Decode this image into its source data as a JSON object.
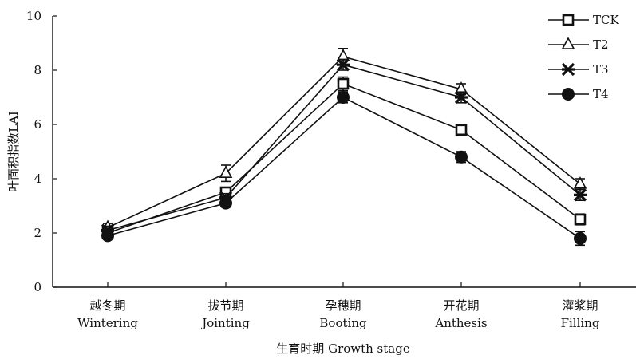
{
  "chart_data": {
    "type": "line",
    "title": "",
    "xlabel": "生育时期 Growth stage",
    "ylabel": "叶面积指数LAI",
    "ylim": [
      0,
      10
    ],
    "yticks": [
      0,
      2,
      4,
      6,
      8,
      10
    ],
    "grid": false,
    "legend_position": "top-right",
    "categories": [
      {
        "zh": "越冬期",
        "en": "Wintering"
      },
      {
        "zh": "拔节期",
        "en": "Jointing"
      },
      {
        "zh": "孕穗期",
        "en": "Booting"
      },
      {
        "zh": "开花期",
        "en": "Anthesis"
      },
      {
        "zh": "灌浆期",
        "en": "Filling"
      }
    ],
    "series": [
      {
        "name": "TCK",
        "marker": "square-open",
        "values": [
          2.0,
          3.5,
          7.5,
          5.8,
          2.5
        ],
        "errors": [
          0.15,
          0.15,
          0.25,
          0.2,
          0.2
        ]
      },
      {
        "name": "T2",
        "marker": "triangle-open",
        "values": [
          2.2,
          4.2,
          8.5,
          7.3,
          3.8
        ],
        "errors": [
          0.15,
          0.3,
          0.3,
          0.2,
          0.2
        ]
      },
      {
        "name": "T3",
        "marker": "star",
        "values": [
          2.1,
          3.3,
          8.2,
          7.0,
          3.4
        ],
        "errors": [
          0.15,
          0.15,
          0.2,
          0.2,
          0.2
        ]
      },
      {
        "name": "T4",
        "marker": "circle-filled",
        "values": [
          1.9,
          3.1,
          7.0,
          4.8,
          1.8
        ],
        "errors": [
          0.1,
          0.15,
          0.2,
          0.2,
          0.25
        ]
      }
    ]
  }
}
